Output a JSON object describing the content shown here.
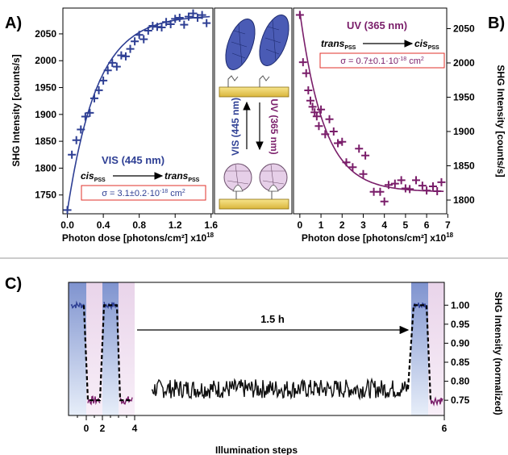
{
  "colors": {
    "blue": "#2e3f94",
    "purple": "#7a1e6a",
    "red_box": "#e0302a",
    "gold": "#f2d563",
    "blue_fill": "#4a5bb5",
    "lilac_fill": "#e6cfe8",
    "axis": "#000000",
    "divider": "#9a9a9a"
  },
  "panel_letters": {
    "a": "A)",
    "b": "B)",
    "c": "C)"
  },
  "chart_data": [
    {
      "type": "scatter",
      "panel": "A",
      "xlabel_text": "Photon dose [photons/cm²] x10",
      "xlabel_exp": "18",
      "ylabel": "SHG Intensity [counts/s]",
      "xlim": [
        -0.05,
        1.62
      ],
      "ylim": [
        1715,
        2098
      ],
      "xticks": [
        "0.0",
        "0.4",
        "0.8",
        "1.2",
        "1.6"
      ],
      "xtick_values": [
        0.0,
        0.4,
        0.8,
        1.2,
        1.6
      ],
      "yticks": [
        "1750",
        "1800",
        "1850",
        "1900",
        "1950",
        "2000",
        "2050"
      ],
      "ytick_values": [
        1750,
        1800,
        1850,
        1900,
        1950,
        2000,
        2050
      ],
      "legend": "VIS (445 nm)",
      "reaction_from": "cis",
      "reaction_from_sub": "PSS",
      "reaction_to": "trans",
      "reaction_to_sub": "PSS",
      "sigma_label": "σ = 3.1±0.2·10",
      "sigma_exp": "-18",
      "sigma_unit": " cm",
      "sigma_unit_exp": "2",
      "fit": {
        "model": "exponential_rise",
        "y0": 1720,
        "yinf": 2085,
        "tau": 0.33
      },
      "x": [
        0.0,
        0.05,
        0.1,
        0.15,
        0.2,
        0.25,
        0.3,
        0.35,
        0.4,
        0.45,
        0.5,
        0.55,
        0.6,
        0.65,
        0.7,
        0.75,
        0.8,
        0.85,
        0.9,
        0.95,
        1.0,
        1.05,
        1.1,
        1.15,
        1.2,
        1.25,
        1.3,
        1.35,
        1.4,
        1.45,
        1.5,
        1.55
      ],
      "y": [
        1722,
        1825,
        1852,
        1872,
        1896,
        1903,
        1930,
        1945,
        1963,
        1982,
        1996,
        1989,
        2010,
        2008,
        2022,
        2036,
        2048,
        2040,
        2056,
        2065,
        2063,
        2062,
        2072,
        2068,
        2078,
        2080,
        2067,
        2082,
        2088,
        2080,
        2085,
        2070
      ]
    },
    {
      "type": "scatter",
      "panel": "B",
      "xlabel_text": "Photon dose [photons/cm²] x10",
      "xlabel_exp": "18",
      "ylabel": "SHG Intensity [counts/s]",
      "xlim": [
        -0.3,
        6.95
      ],
      "ylim": [
        1780,
        2080
      ],
      "xticks": [
        "0",
        "1",
        "2",
        "3",
        "4",
        "5",
        "6",
        "7"
      ],
      "xtick_values": [
        0,
        1,
        2,
        3,
        4,
        5,
        6,
        7
      ],
      "yticks": [
        "1800",
        "1850",
        "1900",
        "1950",
        "2000",
        "2050"
      ],
      "ytick_values": [
        1800,
        1850,
        1900,
        1950,
        2000,
        2050
      ],
      "legend": "UV (365 nm)",
      "reaction_from": "trans",
      "reaction_from_sub": "PSS",
      "reaction_to": "cis",
      "reaction_to_sub": "PSS",
      "sigma_label": "σ = 0.7±0.1·10",
      "sigma_exp": "-18",
      "sigma_unit": " cm",
      "sigma_unit_exp": "2",
      "fit": {
        "model": "exponential_decay",
        "y0": 2075,
        "yinf": 1812,
        "tau": 1.15
      },
      "x": [
        0.0,
        0.15,
        0.3,
        0.4,
        0.5,
        0.6,
        0.7,
        0.8,
        0.9,
        1.0,
        1.2,
        1.4,
        1.6,
        1.8,
        2.0,
        2.2,
        2.5,
        2.8,
        3.0,
        3.1,
        3.5,
        3.8,
        4.0,
        4.2,
        4.5,
        4.8,
        5.0,
        5.2,
        5.5,
        5.8,
        6.0,
        6.3,
        6.5,
        6.7
      ],
      "y": [
        2070,
        2001,
        1985,
        1960,
        1945,
        1936,
        1928,
        1922,
        1908,
        1932,
        1896,
        1918,
        1900,
        1883,
        1885,
        1855,
        1848,
        1875,
        1838,
        1865,
        1812,
        1812,
        1798,
        1822,
        1824,
        1829,
        1817,
        1816,
        1829,
        1821,
        1814,
        1820,
        1813,
        1826
      ]
    },
    {
      "type": "line",
      "panel": "C",
      "xlabel": "Illumination steps",
      "ylabel": "SHG Intensity (normalized)",
      "ylim": [
        0.71,
        1.06
      ],
      "yticks": [
        "0.75",
        "0.80",
        "0.85",
        "0.90",
        "0.95",
        "1.00"
      ],
      "ytick_values": [
        0.75,
        0.8,
        0.85,
        0.9,
        0.95,
        1.0
      ],
      "xticks": [
        "0",
        "2",
        "4",
        "6"
      ],
      "gap_label": "1.5 h",
      "levels": {
        "high": 1.0,
        "low": 0.75,
        "dark_mean": 0.78
      },
      "illumination_sequence": [
        "VIS",
        "UV",
        "VIS",
        "UV",
        "VIS",
        "UV"
      ]
    }
  ],
  "schematic": {
    "vis_label": "VIS (445 nm)",
    "uv_label": "UV (365 nm)"
  }
}
